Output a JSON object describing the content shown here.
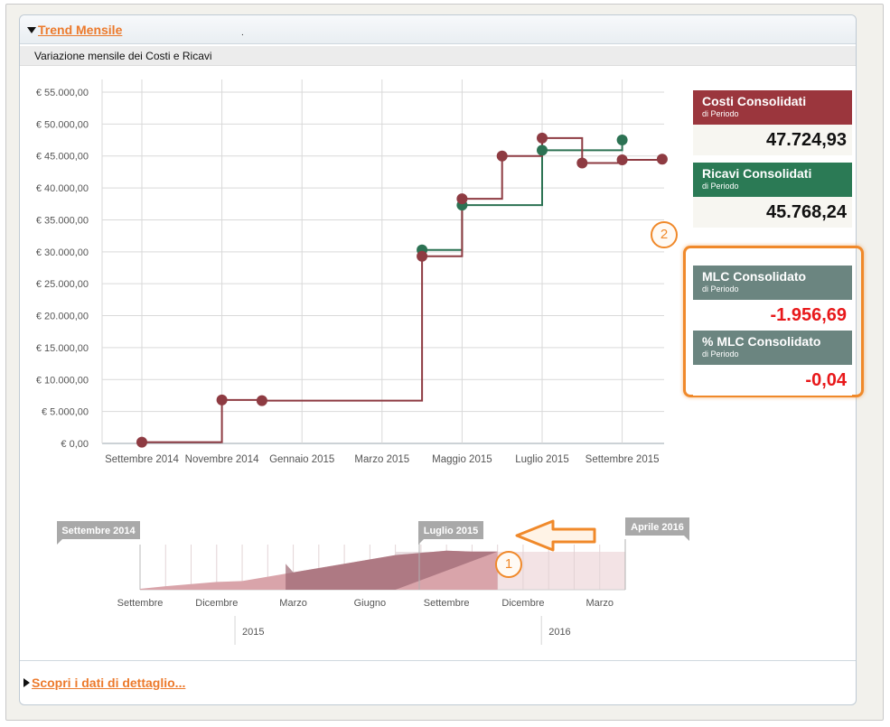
{
  "section": {
    "title": "Trend Mensile",
    "dot": ".",
    "subtitle": "Variazione mensile dei Costi e Ricavi",
    "footer_link": "Scopri i dati di dettaglio..."
  },
  "chart_data": {
    "type": "line",
    "step": true,
    "title": "Variazione mensile dei Costi e Ricavi",
    "x": [
      "2014-09",
      "2014-10",
      "2014-11",
      "2014-12",
      "2015-01",
      "2015-02",
      "2015-03",
      "2015-04",
      "2015-05",
      "2015-06",
      "2015-07",
      "2015-08",
      "2015-09",
      "2015-10"
    ],
    "x_tick_labels": [
      "Settembre 2014",
      "Novembre 2014",
      "Gennaio 2015",
      "Marzo 2015",
      "Maggio 2015",
      "Luglio 2015",
      "Settembre 2015"
    ],
    "y_tick_labels": [
      "€ 0,00",
      "€ 5.000,00",
      "€ 10.000,00",
      "€ 15.000,00",
      "€ 20.000,00",
      "€ 25.000,00",
      "€ 30.000,00",
      "€ 35.000,00",
      "€ 40.000,00",
      "€ 45.000,00",
      "€ 50.000,00",
      "€ 55.000,00"
    ],
    "ylim": [
      0,
      55000
    ],
    "grid": true,
    "series": [
      {
        "color": "#8e3b42",
        "x": [
          "2014-09",
          "2014-11",
          "2014-12",
          "2015-04",
          "2015-05",
          "2015-06",
          "2015-07",
          "2015-08",
          "2015-09",
          "2015-10"
        ],
        "values": [
          200,
          6800,
          6700,
          29300,
          38300,
          45000,
          47800,
          43900,
          44400,
          44500
        ]
      },
      {
        "color": "#2c7253",
        "x": [
          "2015-04",
          "2015-05",
          "2015-07",
          "2015-09"
        ],
        "values": [
          30300,
          37300,
          45900,
          47500
        ]
      }
    ]
  },
  "navigator": {
    "start_flag": "Settembre 2014",
    "handle_flag": "Luglio 2015",
    "end_flag": "Aprile 2016",
    "month_labels": [
      "Settembre",
      "Dicembre",
      "Marzo",
      "Giugno",
      "Settembre",
      "Dicembre",
      "Marzo"
    ],
    "year_labels": [
      "2015",
      "2016"
    ],
    "window_start": "2015-03",
    "window_end": "2015-07"
  },
  "cards": {
    "costi": {
      "title": "Costi Consolidati",
      "sub": "di Periodo",
      "value": "47.724,93",
      "color": "#9b363d"
    },
    "ricavi": {
      "title": "Ricavi Consolidati",
      "sub": "di Periodo",
      "value": "45.768,24",
      "color": "#2b7a55"
    },
    "mlc": {
      "title": "MLC Consolidato",
      "sub": "di Periodo",
      "value": "-1.956,69",
      "color": "#6b8580"
    },
    "mlc_pct": {
      "title": "% MLC Consolidato",
      "sub": "di Periodo",
      "value": "-0,04",
      "color": "#6b8580"
    }
  },
  "annotations": {
    "badge1": "1",
    "badge2": "2",
    "accent": "#f0892a"
  }
}
